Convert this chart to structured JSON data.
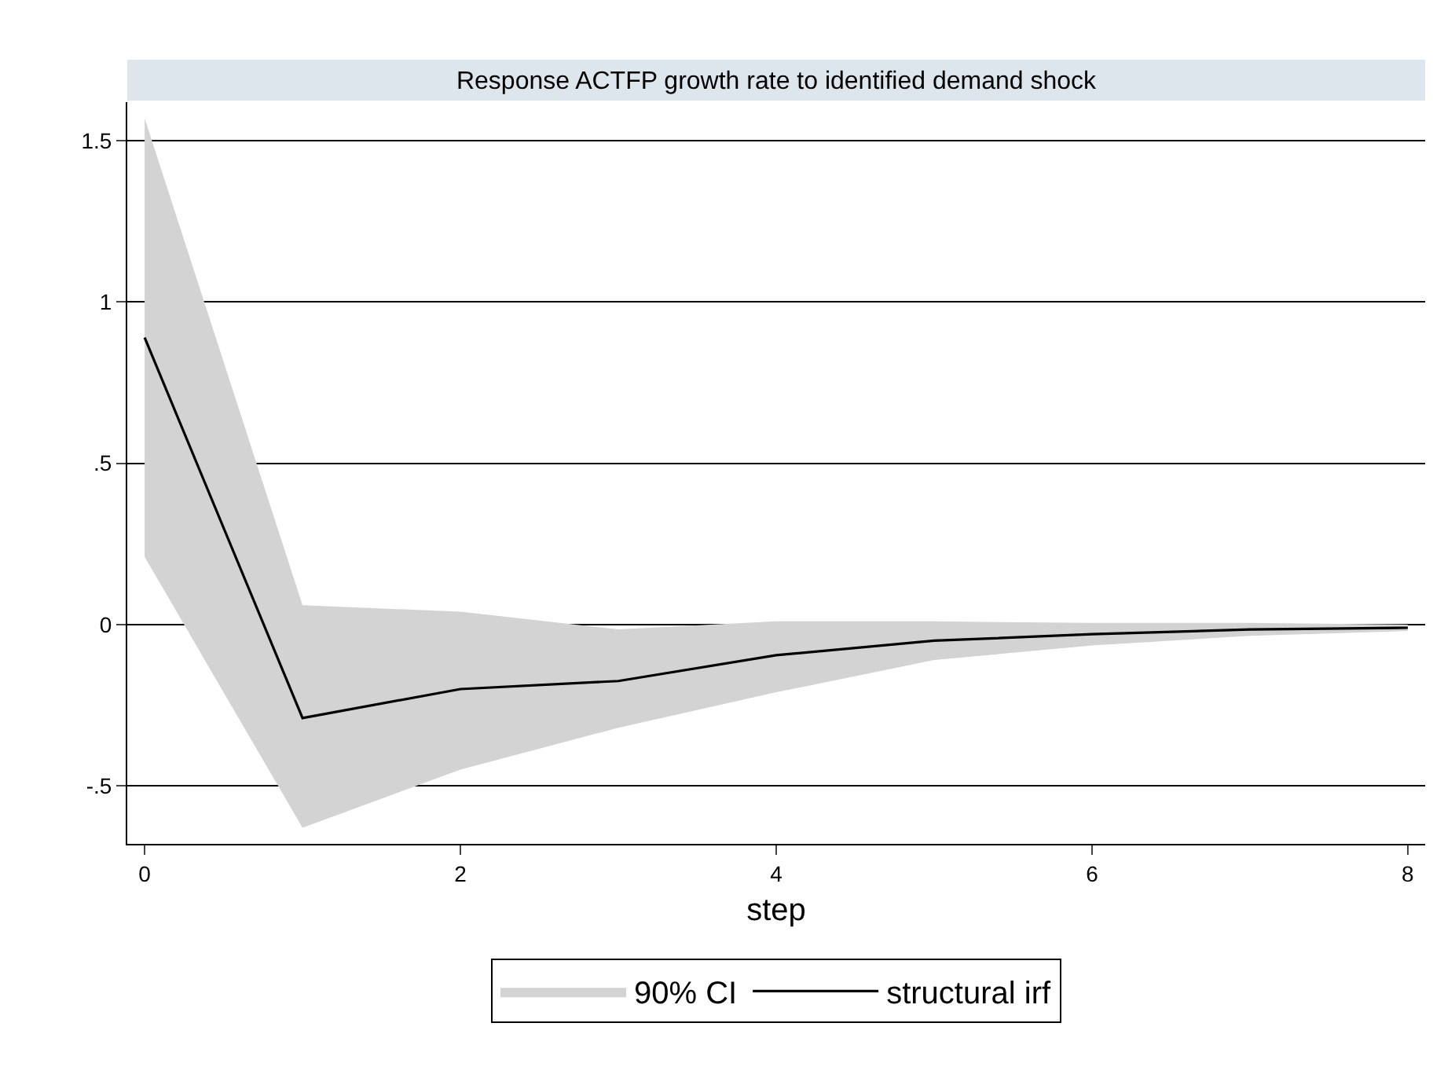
{
  "chart_data": {
    "type": "line",
    "title": "Response ACTFP growth rate to identified demand shock",
    "xlabel": "step",
    "annotations": [
      "90% CI"
    ],
    "x": [
      0,
      1,
      2,
      3,
      4,
      5,
      6,
      7,
      8
    ],
    "series": [
      {
        "name": "structural irf",
        "color": "#000000",
        "values": [
          0.89,
          -0.29,
          -0.2,
          -0.175,
          -0.095,
          -0.05,
          -0.03,
          -0.015,
          -0.01
        ],
        "upper": [
          1.57,
          0.06,
          0.04,
          -0.015,
          0.01,
          0.01,
          0.005,
          0.005,
          0
        ],
        "lower": [
          0.21,
          -0.63,
          -0.45,
          -0.32,
          -0.21,
          -0.11,
          -0.065,
          -0.035,
          -0.02
        ]
      }
    ],
    "xlim": [
      -0.11,
      8.11
    ],
    "xticks": [
      0,
      2,
      4,
      6,
      8
    ],
    "ylim": [
      -0.68,
      1.62
    ],
    "yticks": [
      {
        "value": -0.5,
        "label": "-.5"
      },
      0,
      {
        "value": 0.5,
        "label": ".5"
      },
      1,
      1.5
    ],
    "grid": "y",
    "legend": "bottom",
    "marker": "none",
    "line_style": "solid"
  }
}
